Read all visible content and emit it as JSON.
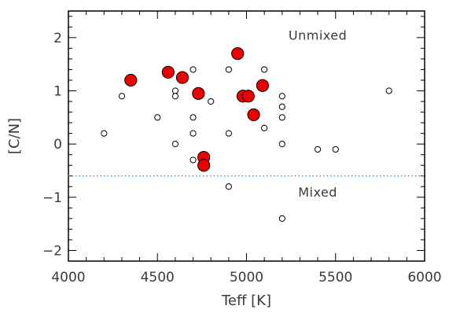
{
  "chart_data": {
    "type": "scatter",
    "title": "",
    "xlabel": "Teff [K]",
    "ylabel": "[C/N]",
    "xlim": [
      4000,
      6000
    ],
    "ylim": [
      -2.2,
      2.5
    ],
    "xticks": [
      4000,
      4500,
      5000,
      5500,
      6000
    ],
    "yticks": [
      -2,
      -1,
      0,
      1,
      2
    ],
    "grid": false,
    "reference_line": {
      "y": -0.6,
      "style": "dotted",
      "color": "#3399dd"
    },
    "annotations": [
      {
        "text": "Unmixed",
        "x": 5400,
        "y": 2.05
      },
      {
        "text": "Mixed",
        "x": 5400,
        "y": -0.9
      }
    ],
    "series": [
      {
        "marker": "open-circle",
        "color": "#000000",
        "points": [
          [
            4200,
            0.2
          ],
          [
            4300,
            0.9
          ],
          [
            4500,
            0.5
          ],
          [
            4600,
            1.0
          ],
          [
            4600,
            0.9
          ],
          [
            4600,
            0.0
          ],
          [
            4700,
            1.4
          ],
          [
            4700,
            0.5
          ],
          [
            4700,
            0.2
          ],
          [
            4700,
            -0.3
          ],
          [
            4800,
            0.8
          ],
          [
            4900,
            1.4
          ],
          [
            4900,
            0.2
          ],
          [
            4900,
            -0.8
          ],
          [
            5100,
            1.4
          ],
          [
            5100,
            0.3
          ],
          [
            5200,
            0.9
          ],
          [
            5200,
            0.7
          ],
          [
            5200,
            0.5
          ],
          [
            5200,
            0.0
          ],
          [
            5200,
            -1.4
          ],
          [
            5400,
            -0.1
          ],
          [
            5500,
            -0.1
          ],
          [
            5800,
            1.0
          ]
        ]
      },
      {
        "marker": "filled-circle",
        "color": "#ee0000",
        "points": [
          [
            4350,
            1.2
          ],
          [
            4560,
            1.35
          ],
          [
            4640,
            1.25
          ],
          [
            4730,
            0.95
          ],
          [
            4950,
            1.7
          ],
          [
            4980,
            0.9
          ],
          [
            5010,
            0.9
          ],
          [
            5040,
            0.55
          ],
          [
            5090,
            1.1
          ],
          [
            4760,
            -0.25
          ],
          [
            4760,
            -0.4
          ]
        ]
      }
    ]
  }
}
